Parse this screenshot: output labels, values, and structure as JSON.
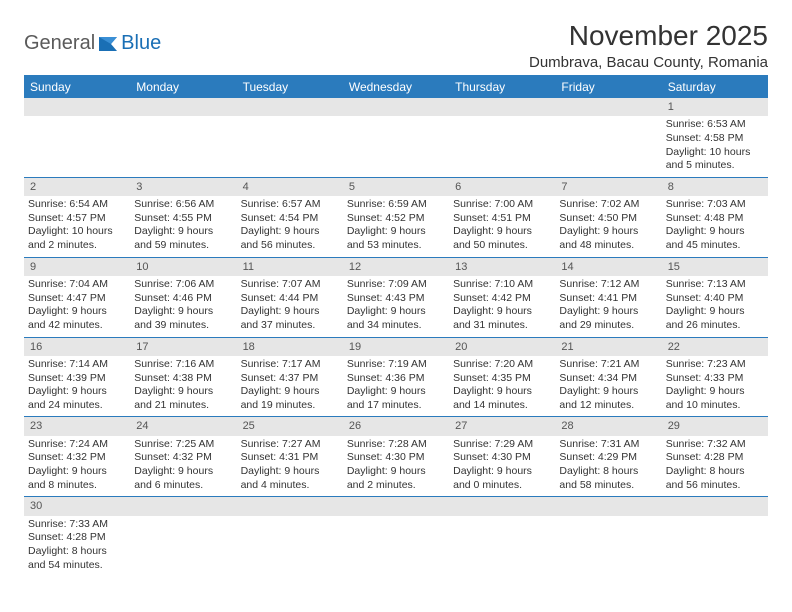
{
  "logo": {
    "general": "General",
    "blue": "Blue"
  },
  "title": "November 2025",
  "location": "Dumbrava, Bacau County, Romania",
  "colors": {
    "header_bg": "#2b7bbd",
    "header_text": "#ffffff",
    "daynum_bg": "#e6e6e6",
    "border": "#2b7bbd",
    "text": "#333333",
    "logo_general": "#5a5a5a",
    "logo_blue": "#1a6fb5"
  },
  "daysOfWeek": [
    "Sunday",
    "Monday",
    "Tuesday",
    "Wednesday",
    "Thursday",
    "Friday",
    "Saturday"
  ],
  "weeks": [
    [
      null,
      null,
      null,
      null,
      null,
      null,
      {
        "n": "1",
        "sr": "Sunrise: 6:53 AM",
        "ss": "Sunset: 4:58 PM",
        "d1": "Daylight: 10 hours",
        "d2": "and 5 minutes."
      }
    ],
    [
      {
        "n": "2",
        "sr": "Sunrise: 6:54 AM",
        "ss": "Sunset: 4:57 PM",
        "d1": "Daylight: 10 hours",
        "d2": "and 2 minutes."
      },
      {
        "n": "3",
        "sr": "Sunrise: 6:56 AM",
        "ss": "Sunset: 4:55 PM",
        "d1": "Daylight: 9 hours",
        "d2": "and 59 minutes."
      },
      {
        "n": "4",
        "sr": "Sunrise: 6:57 AM",
        "ss": "Sunset: 4:54 PM",
        "d1": "Daylight: 9 hours",
        "d2": "and 56 minutes."
      },
      {
        "n": "5",
        "sr": "Sunrise: 6:59 AM",
        "ss": "Sunset: 4:52 PM",
        "d1": "Daylight: 9 hours",
        "d2": "and 53 minutes."
      },
      {
        "n": "6",
        "sr": "Sunrise: 7:00 AM",
        "ss": "Sunset: 4:51 PM",
        "d1": "Daylight: 9 hours",
        "d2": "and 50 minutes."
      },
      {
        "n": "7",
        "sr": "Sunrise: 7:02 AM",
        "ss": "Sunset: 4:50 PM",
        "d1": "Daylight: 9 hours",
        "d2": "and 48 minutes."
      },
      {
        "n": "8",
        "sr": "Sunrise: 7:03 AM",
        "ss": "Sunset: 4:48 PM",
        "d1": "Daylight: 9 hours",
        "d2": "and 45 minutes."
      }
    ],
    [
      {
        "n": "9",
        "sr": "Sunrise: 7:04 AM",
        "ss": "Sunset: 4:47 PM",
        "d1": "Daylight: 9 hours",
        "d2": "and 42 minutes."
      },
      {
        "n": "10",
        "sr": "Sunrise: 7:06 AM",
        "ss": "Sunset: 4:46 PM",
        "d1": "Daylight: 9 hours",
        "d2": "and 39 minutes."
      },
      {
        "n": "11",
        "sr": "Sunrise: 7:07 AM",
        "ss": "Sunset: 4:44 PM",
        "d1": "Daylight: 9 hours",
        "d2": "and 37 minutes."
      },
      {
        "n": "12",
        "sr": "Sunrise: 7:09 AM",
        "ss": "Sunset: 4:43 PM",
        "d1": "Daylight: 9 hours",
        "d2": "and 34 minutes."
      },
      {
        "n": "13",
        "sr": "Sunrise: 7:10 AM",
        "ss": "Sunset: 4:42 PM",
        "d1": "Daylight: 9 hours",
        "d2": "and 31 minutes."
      },
      {
        "n": "14",
        "sr": "Sunrise: 7:12 AM",
        "ss": "Sunset: 4:41 PM",
        "d1": "Daylight: 9 hours",
        "d2": "and 29 minutes."
      },
      {
        "n": "15",
        "sr": "Sunrise: 7:13 AM",
        "ss": "Sunset: 4:40 PM",
        "d1": "Daylight: 9 hours",
        "d2": "and 26 minutes."
      }
    ],
    [
      {
        "n": "16",
        "sr": "Sunrise: 7:14 AM",
        "ss": "Sunset: 4:39 PM",
        "d1": "Daylight: 9 hours",
        "d2": "and 24 minutes."
      },
      {
        "n": "17",
        "sr": "Sunrise: 7:16 AM",
        "ss": "Sunset: 4:38 PM",
        "d1": "Daylight: 9 hours",
        "d2": "and 21 minutes."
      },
      {
        "n": "18",
        "sr": "Sunrise: 7:17 AM",
        "ss": "Sunset: 4:37 PM",
        "d1": "Daylight: 9 hours",
        "d2": "and 19 minutes."
      },
      {
        "n": "19",
        "sr": "Sunrise: 7:19 AM",
        "ss": "Sunset: 4:36 PM",
        "d1": "Daylight: 9 hours",
        "d2": "and 17 minutes."
      },
      {
        "n": "20",
        "sr": "Sunrise: 7:20 AM",
        "ss": "Sunset: 4:35 PM",
        "d1": "Daylight: 9 hours",
        "d2": "and 14 minutes."
      },
      {
        "n": "21",
        "sr": "Sunrise: 7:21 AM",
        "ss": "Sunset: 4:34 PM",
        "d1": "Daylight: 9 hours",
        "d2": "and 12 minutes."
      },
      {
        "n": "22",
        "sr": "Sunrise: 7:23 AM",
        "ss": "Sunset: 4:33 PM",
        "d1": "Daylight: 9 hours",
        "d2": "and 10 minutes."
      }
    ],
    [
      {
        "n": "23",
        "sr": "Sunrise: 7:24 AM",
        "ss": "Sunset: 4:32 PM",
        "d1": "Daylight: 9 hours",
        "d2": "and 8 minutes."
      },
      {
        "n": "24",
        "sr": "Sunrise: 7:25 AM",
        "ss": "Sunset: 4:32 PM",
        "d1": "Daylight: 9 hours",
        "d2": "and 6 minutes."
      },
      {
        "n": "25",
        "sr": "Sunrise: 7:27 AM",
        "ss": "Sunset: 4:31 PM",
        "d1": "Daylight: 9 hours",
        "d2": "and 4 minutes."
      },
      {
        "n": "26",
        "sr": "Sunrise: 7:28 AM",
        "ss": "Sunset: 4:30 PM",
        "d1": "Daylight: 9 hours",
        "d2": "and 2 minutes."
      },
      {
        "n": "27",
        "sr": "Sunrise: 7:29 AM",
        "ss": "Sunset: 4:30 PM",
        "d1": "Daylight: 9 hours",
        "d2": "and 0 minutes."
      },
      {
        "n": "28",
        "sr": "Sunrise: 7:31 AM",
        "ss": "Sunset: 4:29 PM",
        "d1": "Daylight: 8 hours",
        "d2": "and 58 minutes."
      },
      {
        "n": "29",
        "sr": "Sunrise: 7:32 AM",
        "ss": "Sunset: 4:28 PM",
        "d1": "Daylight: 8 hours",
        "d2": "and 56 minutes."
      }
    ],
    [
      {
        "n": "30",
        "sr": "Sunrise: 7:33 AM",
        "ss": "Sunset: 4:28 PM",
        "d1": "Daylight: 8 hours",
        "d2": "and 54 minutes."
      },
      null,
      null,
      null,
      null,
      null,
      null
    ]
  ]
}
